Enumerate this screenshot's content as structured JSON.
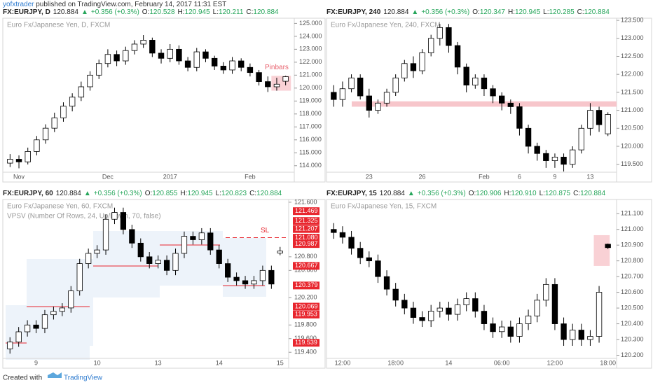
{
  "header": {
    "user": "yofxtrader",
    "text": "published on TradingView.com, February 14, 2017 11:31 EST"
  },
  "footer": {
    "created": "Created with",
    "brand": "TradingView"
  },
  "chart_data": [
    {
      "type": "candlestick",
      "title": "Euro Fx/Japanese Yen, D, FXCM",
      "quote": {
        "symbol": "FX:EURJPY, D",
        "last": "120.884",
        "arrow": "▲",
        "change": "+0.356 (+0.3%)",
        "o_label": "O:",
        "open": "120.528",
        "h_label": "H:",
        "high": "120.945",
        "l_label": "L:",
        "low": "120.211",
        "c_label": "C:",
        "close": "120.884"
      },
      "categories": [
        null,
        "Nov",
        null,
        null,
        null,
        null,
        null,
        null,
        null,
        null,
        null,
        "Dec",
        null,
        null,
        null,
        null,
        null,
        null,
        "2017",
        null,
        null,
        null,
        null,
        null,
        null,
        null,
        null,
        "Feb",
        null,
        null,
        null,
        null
      ],
      "open": [
        114.2,
        114.5,
        114.3,
        115.1,
        116.0,
        116.9,
        117.7,
        118.6,
        119.3,
        120.1,
        121.0,
        121.9,
        122.6,
        122.1,
        122.9,
        123.4,
        123.7,
        122.7,
        122.3,
        123.0,
        122.1,
        121.6,
        122.8,
        122.3,
        121.7,
        121.4,
        122.1,
        121.6,
        121.2,
        120.5,
        120.1,
        120.528
      ],
      "high": [
        114.9,
        114.8,
        115.4,
        116.3,
        117.2,
        118.1,
        118.9,
        119.6,
        120.5,
        121.3,
        122.2,
        123.0,
        122.9,
        123.2,
        123.7,
        124.1,
        123.9,
        123.0,
        123.4,
        123.3,
        122.4,
        123.1,
        123.0,
        122.5,
        122.0,
        122.4,
        122.3,
        121.9,
        121.4,
        120.9,
        120.8,
        120.945
      ],
      "low": [
        113.9,
        113.8,
        114.1,
        114.8,
        115.7,
        116.6,
        117.4,
        118.2,
        119.0,
        119.8,
        120.7,
        121.6,
        121.7,
        121.8,
        122.6,
        123.1,
        122.4,
        121.9,
        122.0,
        121.8,
        121.3,
        121.3,
        122.0,
        121.4,
        121.1,
        121.1,
        121.3,
        120.9,
        120.2,
        119.7,
        119.8,
        120.211
      ],
      "close": [
        114.5,
        114.3,
        115.1,
        116.0,
        116.9,
        117.7,
        118.6,
        119.3,
        120.1,
        121.0,
        121.9,
        122.6,
        122.1,
        122.9,
        123.4,
        123.7,
        122.7,
        122.3,
        123.0,
        122.1,
        121.6,
        122.8,
        122.3,
        121.7,
        121.4,
        122.1,
        121.6,
        121.2,
        120.5,
        120.1,
        120.3,
        120.884
      ],
      "up_color": "#ffffff",
      "down_color": "#000000",
      "annotation": "Pinbars",
      "annotation_color": "#e8626e",
      "ylim": [
        113.5,
        125.4
      ],
      "yticks": [
        {
          "value": 114,
          "label": "114.000"
        },
        {
          "value": 115,
          "label": "115.000"
        },
        {
          "value": 116,
          "label": "116.000"
        },
        {
          "value": 117,
          "label": "117.000"
        },
        {
          "value": 118,
          "label": "118.000"
        },
        {
          "value": 119,
          "label": "119.000"
        },
        {
          "value": 120,
          "label": "120.000"
        },
        {
          "value": 121,
          "label": "121.000"
        },
        {
          "value": 122,
          "label": "122.000"
        },
        {
          "value": 123,
          "label": "123.000"
        },
        {
          "value": 124,
          "label": "124.000"
        },
        {
          "value": 125,
          "label": "125.000"
        }
      ]
    },
    {
      "type": "candlestick",
      "title": "Euro Fx/Japanese Yen, 240, FXCM",
      "quote": {
        "symbol": "FX:EURJPY, 240",
        "last": "120.884",
        "arrow": "▲",
        "change": "+0.356 (+0.3%)",
        "o_label": "O:",
        "open": "120.347",
        "h_label": "H:",
        "high": "120.945",
        "l_label": "L:",
        "low": "120.285",
        "c_label": "C:",
        "close": "120.884"
      },
      "categories": [
        null,
        null,
        null,
        null,
        "23",
        null,
        null,
        null,
        null,
        null,
        "26",
        null,
        null,
        null,
        null,
        null,
        null,
        "Feb",
        null,
        null,
        null,
        "6",
        null,
        null,
        null,
        "9",
        null,
        null,
        null,
        "13",
        null,
        null
      ],
      "open": [
        121.5,
        121.3,
        121.6,
        121.9,
        121.4,
        121.0,
        121.2,
        121.5,
        121.9,
        122.3,
        122.1,
        122.6,
        123.0,
        123.3,
        122.8,
        122.2,
        121.7,
        121.9,
        121.6,
        121.4,
        121.2,
        121.1,
        120.5,
        120.0,
        119.8,
        119.6,
        119.7,
        119.5,
        119.9,
        120.5,
        121.0,
        120.347
      ],
      "high": [
        121.7,
        121.8,
        122.0,
        122.0,
        121.6,
        121.3,
        121.6,
        122.0,
        122.4,
        122.5,
        122.7,
        123.1,
        123.4,
        123.4,
        122.9,
        122.3,
        122.0,
        122.0,
        121.7,
        121.5,
        121.3,
        121.2,
        120.6,
        120.1,
        119.9,
        119.8,
        119.8,
        120.0,
        120.6,
        121.2,
        121.1,
        120.945
      ],
      "low": [
        121.1,
        121.1,
        121.5,
        121.3,
        120.8,
        120.9,
        121.1,
        121.4,
        121.8,
        121.9,
        122.0,
        122.5,
        122.8,
        122.6,
        122.0,
        121.5,
        121.6,
        121.4,
        121.2,
        121.0,
        120.9,
        120.3,
        119.8,
        119.6,
        119.4,
        119.4,
        119.3,
        119.4,
        119.8,
        120.3,
        120.4,
        120.285
      ],
      "close": [
        121.3,
        121.6,
        121.9,
        121.4,
        121.0,
        121.2,
        121.5,
        121.9,
        122.3,
        122.1,
        122.6,
        123.0,
        123.3,
        122.8,
        122.2,
        121.7,
        121.9,
        121.6,
        121.4,
        121.2,
        121.1,
        120.5,
        120.0,
        119.8,
        119.6,
        119.7,
        119.5,
        119.9,
        120.5,
        121.0,
        120.6,
        120.884
      ],
      "up_color": "#ffffff",
      "down_color": "#000000",
      "zone": [
        121.1,
        121.25
      ],
      "zone_color": "#f7c6cb",
      "ylim": [
        119.28,
        123.56
      ],
      "yticks": [
        {
          "value": 119.5,
          "label": "119.500"
        },
        {
          "value": 120,
          "label": "120.000"
        },
        {
          "value": 120.5,
          "label": "120.500"
        },
        {
          "value": 121,
          "label": "121.000"
        },
        {
          "value": 121.5,
          "label": "121.500"
        },
        {
          "value": 122,
          "label": "122.000"
        },
        {
          "value": 122.5,
          "label": "122.500"
        },
        {
          "value": 123,
          "label": "123.000"
        },
        {
          "value": 123.5,
          "label": "123.500"
        }
      ]
    },
    {
      "type": "candlestick",
      "title": "Euro Fx/Japanese Yen, 60, FXCM",
      "subtitle": "VPSV (Number Of Rows, 24, Up/Down, 70, false)",
      "quote": {
        "symbol": "FX:EURJPY, 60",
        "last": "120.884",
        "arrow": "▲",
        "change": "+0.356 (+0.3%)",
        "o_label": "O:",
        "open": "120.855",
        "h_label": "H:",
        "high": "120.945",
        "l_label": "L:",
        "low": "120.823",
        "c_label": "C:",
        "close": "120.884"
      },
      "categories": [
        null,
        null,
        null,
        "9",
        null,
        null,
        null,
        null,
        null,
        null,
        "10",
        null,
        null,
        null,
        null,
        null,
        null,
        "13",
        null,
        null,
        null,
        null,
        null,
        null,
        "14",
        null,
        null,
        null,
        null,
        null,
        null,
        "15"
      ],
      "open": [
        119.45,
        119.55,
        119.7,
        119.8,
        119.75,
        119.95,
        120.0,
        120.05,
        120.3,
        120.7,
        120.85,
        120.9,
        121.35,
        121.45,
        121.2,
        121.0,
        120.8,
        120.7,
        120.75,
        120.6,
        120.85,
        121.1,
        121.05,
        121.15,
        120.9,
        120.7,
        120.5,
        120.45,
        120.4,
        120.45,
        120.6,
        120.855
      ],
      "high": [
        119.62,
        119.77,
        119.87,
        119.87,
        120.02,
        120.07,
        120.12,
        120.37,
        120.77,
        120.92,
        120.97,
        121.42,
        121.52,
        121.52,
        121.27,
        121.07,
        120.87,
        120.82,
        120.82,
        120.92,
        121.17,
        121.17,
        121.22,
        121.22,
        120.97,
        120.77,
        120.57,
        120.52,
        120.52,
        120.67,
        120.67,
        120.945
      ],
      "low": [
        119.38,
        119.48,
        119.63,
        119.68,
        119.68,
        119.88,
        119.93,
        119.98,
        120.23,
        120.63,
        120.78,
        120.83,
        121.28,
        121.13,
        120.93,
        120.73,
        120.63,
        120.63,
        120.53,
        120.53,
        120.78,
        120.98,
        120.98,
        120.83,
        120.63,
        120.43,
        120.38,
        120.33,
        120.33,
        120.38,
        120.33,
        120.823
      ],
      "close": [
        119.55,
        119.7,
        119.8,
        119.75,
        119.95,
        120.0,
        120.05,
        120.3,
        120.7,
        120.85,
        120.9,
        121.35,
        121.45,
        121.2,
        121.0,
        120.8,
        120.7,
        120.75,
        120.6,
        120.85,
        121.1,
        121.05,
        121.15,
        120.9,
        120.7,
        120.5,
        120.45,
        120.4,
        120.45,
        120.6,
        120.4,
        120.884
      ],
      "up_color": "#ffffff",
      "down_color": "#000000",
      "sl": 121.08,
      "annotation": "SL",
      "annotation_color": "#e8262e",
      "price_labels": [
        121.469,
        121.325,
        121.207,
        {
          "value": 121.08,
          "label": "121.080"
        },
        120.987,
        120.667,
        120.379,
        120.069,
        119.953,
        119.539
      ],
      "price_label_color": "#e8262e",
      "ylim": [
        119.31,
        121.64
      ],
      "yticks": [
        {
          "value": 119.4,
          "label": "119.400"
        },
        {
          "value": 119.6,
          "label": "119.600"
        },
        {
          "value": 119.8,
          "label": "119.800"
        },
        {
          "value": 120.2,
          "label": "120.200"
        },
        {
          "value": 120.6,
          "label": "120.600"
        },
        {
          "value": 120.8,
          "label": "120.800"
        },
        {
          "value": 121.6,
          "label": "121.600"
        }
      ]
    },
    {
      "type": "candlestick",
      "title": "Euro Fx/Japanese Yen, 15, FXCM",
      "quote": {
        "symbol": "FX:EURJPY, 15",
        "last": "120.884",
        "arrow": "▲",
        "change": "+0.356 (+0.3%)",
        "o_label": "O:",
        "open": "120.906",
        "h_label": "H:",
        "high": "120.910",
        "l_label": "L:",
        "low": "120.875",
        "c_label": "C:",
        "close": "120.884"
      },
      "categories": [
        null,
        "12:00",
        null,
        null,
        null,
        null,
        null,
        "18:00",
        null,
        null,
        null,
        null,
        null,
        "14",
        null,
        null,
        null,
        null,
        null,
        "06:00",
        null,
        null,
        null,
        null,
        null,
        "12:00",
        null,
        null,
        null,
        null,
        null,
        "18:00"
      ],
      "open": [
        121.0,
        120.98,
        120.95,
        120.88,
        120.82,
        120.8,
        120.7,
        120.62,
        120.55,
        120.5,
        120.44,
        120.42,
        120.48,
        120.5,
        120.46,
        120.52,
        120.56,
        120.48,
        120.4,
        120.35,
        120.38,
        120.32,
        120.4,
        120.45,
        120.55,
        120.65,
        120.4,
        120.3,
        120.36,
        120.3,
        120.32,
        120.906
      ],
      "high": [
        121.04,
        121.02,
        120.99,
        120.92,
        120.86,
        120.84,
        120.74,
        120.66,
        120.59,
        120.54,
        120.48,
        120.52,
        120.54,
        120.54,
        120.56,
        120.6,
        120.6,
        120.52,
        120.44,
        120.42,
        120.42,
        120.44,
        120.49,
        120.59,
        120.69,
        120.69,
        120.44,
        120.4,
        120.4,
        120.36,
        120.64,
        120.91
      ],
      "low": [
        120.94,
        120.91,
        120.84,
        120.78,
        120.76,
        120.66,
        120.58,
        120.51,
        120.46,
        120.4,
        120.38,
        120.38,
        120.44,
        120.42,
        120.42,
        120.48,
        120.44,
        120.36,
        120.31,
        120.31,
        120.28,
        120.28,
        120.36,
        120.41,
        120.51,
        120.36,
        120.26,
        120.26,
        120.26,
        120.26,
        120.28,
        120.875
      ],
      "close": [
        120.98,
        120.95,
        120.88,
        120.82,
        120.8,
        120.7,
        120.62,
        120.55,
        120.5,
        120.44,
        120.42,
        120.48,
        120.5,
        120.46,
        120.52,
        120.56,
        120.48,
        120.4,
        120.35,
        120.38,
        120.32,
        120.4,
        120.45,
        120.55,
        120.65,
        120.4,
        120.3,
        120.36,
        120.3,
        120.32,
        120.6,
        120.884
      ],
      "up_color": "#ffffff",
      "down_color": "#000000",
      "ylim": [
        120.18,
        121.19
      ],
      "yticks": [
        {
          "value": 120.2,
          "label": "120.200"
        },
        {
          "value": 120.3,
          "label": "120.300"
        },
        {
          "value": 120.4,
          "label": "120.400"
        },
        {
          "value": 120.5,
          "label": "120.500"
        },
        {
          "value": 120.6,
          "label": "120.600"
        },
        {
          "value": 120.7,
          "label": "120.700"
        },
        {
          "value": 120.8,
          "label": "120.800"
        },
        {
          "value": 120.9,
          "label": "120.900"
        },
        {
          "value": 121,
          "label": "121.000"
        },
        {
          "value": 121.1,
          "label": "121.100"
        }
      ]
    }
  ]
}
